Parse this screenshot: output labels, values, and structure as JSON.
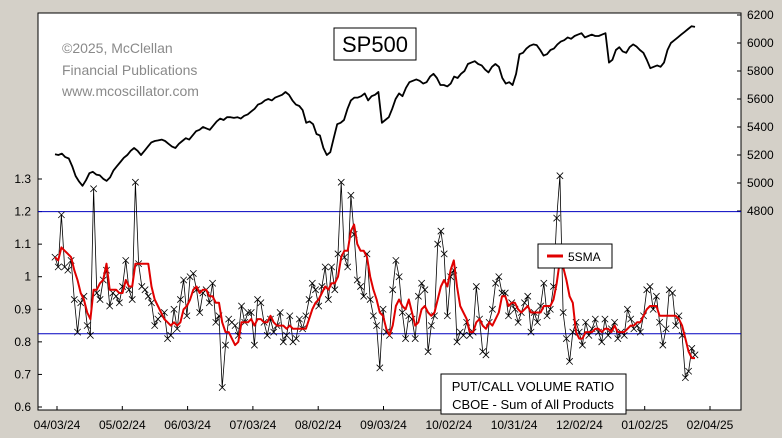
{
  "chart_data": {
    "type": "line",
    "title": "SP500",
    "copyright": [
      "©2025, McClellan",
      "Financial Publications",
      "www.mcoscillator.com"
    ],
    "caption": [
      "PUT/CALL VOLUME RATIO",
      "CBOE - Sum of All Products"
    ],
    "legend": {
      "label": "5SMA",
      "color": "#e00000",
      "placement": "right"
    },
    "x_ticks": [
      "04/03/24",
      "05/02/24",
      "06/03/24",
      "07/03/24",
      "08/02/24",
      "09/03/24",
      "10/02/24",
      "10/31/24",
      "12/02/24",
      "01/02/25",
      "02/04/25"
    ],
    "y_left": {
      "ticks": [
        "0.6",
        "0.7",
        "0.8",
        "0.9",
        "1",
        "1.1",
        "1.2",
        "1.3"
      ],
      "range": [
        0.6,
        1.3
      ]
    },
    "y_right": {
      "ticks": [
        "4800",
        "5000",
        "5200",
        "5400",
        "5600",
        "5800",
        "6000",
        "6200"
      ],
      "range": [
        4800,
        6200
      ]
    },
    "reference_lines": [
      1.2,
      0.825
    ],
    "grid": false,
    "series": [
      {
        "name": "SP500",
        "axis": "right",
        "color": "#000000",
        "values": [
          5205,
          5200,
          5210,
          5185,
          5175,
          5120,
          5050,
          5010,
          4980,
          5020,
          5070,
          5080,
          5060,
          5055,
          5030,
          5015,
          5040,
          5090,
          5120,
          5150,
          5180,
          5200,
          5230,
          5250,
          5230,
          5200,
          5230,
          5260,
          5290,
          5300,
          5304,
          5310,
          5300,
          5280,
          5260,
          5250,
          5280,
          5300,
          5320,
          5310,
          5340,
          5370,
          5380,
          5400,
          5390,
          5380,
          5410,
          5440,
          5460,
          5450,
          5470,
          5470,
          5465,
          5470,
          5460,
          5480,
          5490,
          5510,
          5530,
          5560,
          5570,
          5590,
          5600,
          5590,
          5610,
          5620,
          5630,
          5650,
          5630,
          5590,
          5560,
          5550,
          5520,
          5430,
          5440,
          5420,
          5350,
          5340,
          5250,
          5200,
          5220,
          5320,
          5420,
          5430,
          5450,
          5530,
          5590,
          5610,
          5610,
          5620,
          5640,
          5590,
          5620,
          5630,
          5650,
          5430,
          5450,
          5470,
          5530,
          5600,
          5640,
          5620,
          5680,
          5720,
          5730,
          5740,
          5730,
          5710,
          5720,
          5760,
          5780,
          5750,
          5700,
          5700,
          5690,
          5710,
          5760,
          5750,
          5780,
          5800,
          5850,
          5860,
          5870,
          5850,
          5840,
          5810,
          5790,
          5830,
          5850,
          5830,
          5750,
          5710,
          5720,
          5700,
          5780,
          5920,
          5930,
          5960,
          5980,
          5990,
          5985,
          5950,
          5910,
          5920,
          5950,
          5960,
          5990,
          6010,
          6020,
          6040,
          6030,
          6050,
          6060,
          6070,
          6040,
          6050,
          6060,
          6050,
          6050,
          6060,
          6070,
          5860,
          5880,
          5950,
          5970,
          5940,
          5930,
          5970,
          5990,
          5975,
          5950,
          5930,
          5880,
          5820,
          5830,
          5840,
          5830,
          5860,
          5950,
          6000,
          6020,
          6040,
          6060,
          6080,
          6100,
          6120,
          6115
        ]
      },
      {
        "name": "",
        "axis": "left",
        "color": "#000000",
        "marker": "x",
        "values": [
          1.06,
          1.03,
          1.19,
          1.03,
          1.02,
          1.05,
          0.93,
          0.83,
          0.92,
          0.94,
          0.85,
          0.82,
          1.27,
          0.95,
          0.93,
          0.99,
          1.02,
          0.91,
          0.95,
          0.94,
          0.92,
          0.97,
          1.05,
          0.96,
          0.93,
          1.29,
          1.04,
          0.97,
          0.96,
          0.94,
          0.92,
          0.85,
          0.87,
          0.88,
          0.89,
          0.81,
          0.82,
          0.9,
          0.84,
          0.93,
          0.99,
          0.88,
          1.0,
          1.01,
          0.96,
          0.89,
          0.95,
          0.96,
          0.92,
          0.98,
          0.86,
          0.88,
          0.66,
          0.79,
          0.87,
          0.86,
          0.85,
          0.82,
          0.91,
          0.86,
          0.89,
          0.89,
          0.79,
          0.93,
          0.92,
          0.86,
          0.82,
          0.87,
          0.83,
          0.85,
          0.89,
          0.8,
          0.82,
          0.88,
          0.8,
          0.81,
          0.87,
          0.84,
          0.88,
          0.93,
          0.98,
          0.96,
          0.91,
          0.97,
          1.03,
          0.93,
          1.03,
          0.96,
          1.07,
          1.29,
          1.06,
          1.03,
          1.25,
          1.13,
          0.99,
          0.97,
          0.94,
          1.07,
          0.93,
          0.88,
          0.85,
          0.72,
          0.9,
          0.83,
          0.82,
          0.96,
          1.05,
          1.0,
          0.89,
          0.81,
          0.88,
          0.87,
          0.81,
          0.94,
          0.98,
          0.96,
          0.77,
          0.85,
          0.88,
          1.1,
          1.14,
          1.07,
          0.88,
          1.0,
          1.02,
          0.8,
          0.83,
          0.82,
          0.86,
          0.82,
          0.83,
          0.97,
          0.87,
          0.77,
          0.76,
          0.86,
          0.9,
          0.98,
          1.0,
          0.95,
          0.95,
          0.88,
          0.92,
          0.9,
          0.86,
          0.89,
          0.92,
          0.94,
          0.83,
          0.89,
          0.86,
          0.91,
          0.98,
          0.88,
          0.9,
          0.97,
          1.18,
          1.31,
          0.89,
          0.81,
          0.74,
          0.83,
          0.86,
          0.83,
          0.79,
          0.86,
          0.82,
          0.84,
          0.87,
          0.83,
          0.8,
          0.87,
          0.82,
          0.84,
          0.86,
          0.81,
          0.83,
          0.82,
          0.9,
          0.87,
          0.84,
          0.85,
          0.83,
          0.88,
          0.96,
          0.97,
          0.9,
          0.94,
          0.86,
          0.79,
          0.84,
          0.96,
          0.95,
          0.85,
          0.88,
          0.82,
          0.69,
          0.71,
          0.78,
          0.76
        ]
      },
      {
        "name": "5SMA",
        "axis": "left",
        "color": "#e00000",
        "values": [
          1.06,
          1.05,
          1.09,
          1.08,
          1.07,
          1.06,
          1.02,
          0.99,
          0.95,
          0.93,
          0.89,
          0.87,
          0.96,
          0.96,
          0.98,
          0.99,
          1.04,
          0.96,
          0.96,
          0.96,
          0.95,
          0.95,
          0.99,
          0.97,
          0.97,
          1.04,
          1.04,
          1.04,
          1.04,
          1.04,
          0.97,
          0.93,
          0.91,
          0.89,
          0.87,
          0.86,
          0.85,
          0.86,
          0.85,
          0.86,
          0.9,
          0.91,
          0.93,
          0.96,
          0.97,
          0.95,
          0.96,
          0.96,
          0.94,
          0.94,
          0.92,
          0.92,
          0.86,
          0.83,
          0.83,
          0.81,
          0.79,
          0.8,
          0.86,
          0.86,
          0.86,
          0.87,
          0.85,
          0.87,
          0.87,
          0.86,
          0.86,
          0.88,
          0.86,
          0.85,
          0.85,
          0.85,
          0.84,
          0.85,
          0.84,
          0.84,
          0.84,
          0.84,
          0.84,
          0.87,
          0.9,
          0.92,
          0.93,
          0.95,
          0.97,
          0.96,
          0.98,
          0.98,
          1.0,
          1.06,
          1.08,
          1.08,
          1.14,
          1.16,
          1.1,
          1.08,
          1.08,
          1.06,
          1.0,
          0.96,
          0.93,
          0.89,
          0.88,
          0.84,
          0.82,
          0.85,
          0.91,
          0.93,
          0.91,
          0.9,
          0.93,
          0.89,
          0.85,
          0.86,
          0.9,
          0.91,
          0.89,
          0.88,
          0.89,
          0.93,
          0.97,
          0.99,
          0.97,
          1.02,
          1.05,
          0.97,
          0.91,
          0.89,
          0.87,
          0.83,
          0.83,
          0.86,
          0.87,
          0.85,
          0.84,
          0.86,
          0.85,
          0.87,
          0.89,
          0.94,
          0.94,
          0.91,
          0.92,
          0.92,
          0.9,
          0.89,
          0.9,
          0.91,
          0.89,
          0.89,
          0.89,
          0.89,
          0.91,
          0.91,
          0.91,
          0.93,
          0.98,
          1.05,
          1.03,
          0.99,
          0.94,
          0.92,
          0.83,
          0.81,
          0.81,
          0.83,
          0.83,
          0.83,
          0.84,
          0.84,
          0.83,
          0.84,
          0.84,
          0.83,
          0.85,
          0.83,
          0.83,
          0.83,
          0.84,
          0.85,
          0.85,
          0.86,
          0.86,
          0.88,
          0.9,
          0.91,
          0.91,
          0.91,
          0.88,
          0.88,
          0.88,
          0.88,
          0.88,
          0.88,
          0.87,
          0.85,
          0.81,
          0.77,
          0.75,
          0.75
        ]
      }
    ]
  }
}
